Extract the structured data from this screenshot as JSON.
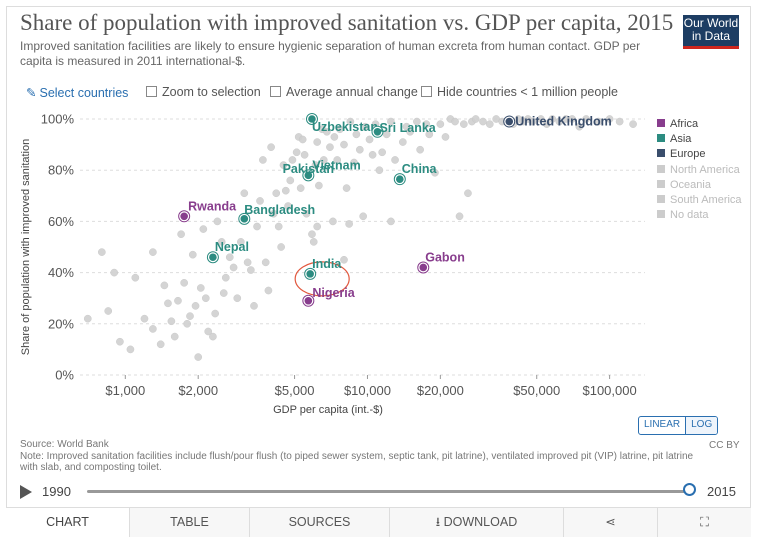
{
  "header": {
    "title": "Share of population with improved sanitation vs. GDP per capita, 2015",
    "subtitle": "Improved sanitation facilities are likely to ensure hygienic separation of human excreta from human contact. GDP per capita is measured in 2011 international-$.",
    "logo_line1": "Our World",
    "logo_line2": "in Data"
  },
  "controls": {
    "select_countries": "Select countries",
    "zoom": "Zoom to selection",
    "average_change": "Average annual change",
    "hide_small": "Hide countries < 1 million people"
  },
  "legend": [
    {
      "label": "Africa",
      "color": "#883d8d"
    },
    {
      "label": "Asia",
      "color": "#2c8c81"
    },
    {
      "label": "Europe",
      "color": "#3a4e6c"
    },
    {
      "label": "North America",
      "color": "#cccccc"
    },
    {
      "label": "Oceania",
      "color": "#cccccc"
    },
    {
      "label": "South America",
      "color": "#cccccc"
    },
    {
      "label": "No data",
      "color": "#cccccc"
    }
  ],
  "chart_data": {
    "type": "scatter",
    "xlabel": "GDP per capita (int.-$)",
    "ylabel": "Share of population with improved sanitation",
    "x_scale": "log",
    "xlim": [
      650,
      140000
    ],
    "ylim": [
      0,
      100
    ],
    "x_ticks": [
      1000,
      2000,
      5000,
      10000,
      20000,
      50000,
      100000
    ],
    "x_tick_labels": [
      "$1,000",
      "$2,000",
      "$5,000",
      "$10,000",
      "$20,000",
      "$50,000",
      "$100,000"
    ],
    "y_ticks": [
      0,
      20,
      40,
      60,
      80,
      100
    ],
    "y_tick_labels": [
      "0%",
      "20%",
      "40%",
      "60%",
      "80%",
      "100%"
    ],
    "grid": "horizontal",
    "legend_position": "right",
    "highlighted": [
      {
        "label": "United Kingdom",
        "region": "Europe",
        "x": 38500,
        "y": 99
      },
      {
        "label": "Uzbekistan",
        "region": "Asia",
        "x": 5900,
        "y": 100
      },
      {
        "label": "Sri Lanka",
        "region": "Asia",
        "x": 11000,
        "y": 95
      },
      {
        "label": "Vietnam",
        "region": "Asia",
        "x": 5700,
        "y": 78
      },
      {
        "label": "China",
        "region": "Asia",
        "x": 13600,
        "y": 76.5
      },
      {
        "label": "Pakistan",
        "region": "Asia",
        "x": 5000,
        "y": 80
      },
      {
        "label": "Bangladesh",
        "region": "Asia",
        "x": 3100,
        "y": 61
      },
      {
        "label": "Rwanda",
        "region": "Africa",
        "x": 1750,
        "y": 62
      },
      {
        "label": "Nepal",
        "region": "Asia",
        "x": 2300,
        "y": 46
      },
      {
        "label": "India",
        "region": "Asia",
        "x": 5800,
        "y": 39.5
      },
      {
        "label": "Gabon",
        "region": "Africa",
        "x": 17000,
        "y": 42
      },
      {
        "label": "Nigeria",
        "region": "Africa",
        "x": 5700,
        "y": 29
      }
    ],
    "others": [
      [
        700,
        22
      ],
      [
        800,
        48
      ],
      [
        850,
        25
      ],
      [
        900,
        40
      ],
      [
        950,
        13
      ],
      [
        1050,
        10
      ],
      [
        1100,
        38
      ],
      [
        1200,
        22
      ],
      [
        1300,
        48
      ],
      [
        1300,
        18
      ],
      [
        1400,
        12
      ],
      [
        1450,
        35
      ],
      [
        1500,
        28
      ],
      [
        1550,
        21
      ],
      [
        1600,
        15
      ],
      [
        1650,
        29
      ],
      [
        1700,
        55
      ],
      [
        1750,
        36
      ],
      [
        1800,
        20
      ],
      [
        1850,
        23
      ],
      [
        1900,
        47
      ],
      [
        1950,
        27
      ],
      [
        2000,
        7
      ],
      [
        2050,
        34
      ],
      [
        2100,
        57
      ],
      [
        2150,
        30
      ],
      [
        2200,
        17
      ],
      [
        2300,
        15
      ],
      [
        2350,
        24
      ],
      [
        2400,
        60
      ],
      [
        2500,
        52
      ],
      [
        2550,
        32
      ],
      [
        2600,
        38
      ],
      [
        2700,
        46
      ],
      [
        2800,
        42
      ],
      [
        2900,
        30
      ],
      [
        3000,
        52
      ],
      [
        3100,
        71
      ],
      [
        3200,
        44
      ],
      [
        3300,
        41
      ],
      [
        3400,
        27
      ],
      [
        3500,
        58
      ],
      [
        3600,
        68
      ],
      [
        3700,
        84
      ],
      [
        3800,
        44
      ],
      [
        3900,
        33
      ],
      [
        4000,
        89
      ],
      [
        4100,
        63
      ],
      [
        4200,
        71
      ],
      [
        4300,
        58
      ],
      [
        4400,
        50
      ],
      [
        4500,
        82
      ],
      [
        4600,
        72
      ],
      [
        4700,
        66
      ],
      [
        4800,
        76
      ],
      [
        4900,
        84
      ],
      [
        5100,
        87
      ],
      [
        5200,
        93
      ],
      [
        5300,
        73
      ],
      [
        5400,
        92
      ],
      [
        5500,
        86
      ],
      [
        5600,
        63
      ],
      [
        6000,
        52
      ],
      [
        6100,
        82
      ],
      [
        6200,
        91
      ],
      [
        6300,
        74
      ],
      [
        6500,
        96
      ],
      [
        6600,
        84
      ],
      [
        6800,
        95
      ],
      [
        7000,
        89
      ],
      [
        7300,
        93
      ],
      [
        7500,
        84
      ],
      [
        7700,
        96
      ],
      [
        8000,
        90
      ],
      [
        8200,
        73
      ],
      [
        8500,
        99
      ],
      [
        8800,
        83
      ],
      [
        9000,
        94
      ],
      [
        9300,
        88
      ],
      [
        9600,
        62
      ],
      [
        9800,
        97
      ],
      [
        10200,
        92
      ],
      [
        10500,
        86
      ],
      [
        10800,
        98
      ],
      [
        11500,
        87
      ],
      [
        12000,
        94
      ],
      [
        12500,
        99
      ],
      [
        13000,
        84
      ],
      [
        14000,
        91
      ],
      [
        14500,
        97
      ],
      [
        15000,
        95
      ],
      [
        16000,
        99
      ],
      [
        16500,
        88
      ],
      [
        17500,
        98
      ],
      [
        18000,
        94
      ],
      [
        19000,
        79
      ],
      [
        20000,
        98
      ],
      [
        21000,
        93
      ],
      [
        22000,
        100
      ],
      [
        23000,
        99
      ],
      [
        24000,
        62
      ],
      [
        25000,
        98
      ],
      [
        26000,
        71
      ],
      [
        27000,
        99
      ],
      [
        28000,
        100
      ],
      [
        30000,
        99
      ],
      [
        32000,
        98
      ],
      [
        34000,
        100
      ],
      [
        36000,
        99
      ],
      [
        40000,
        98
      ],
      [
        42000,
        100
      ],
      [
        44000,
        99
      ],
      [
        46000,
        100
      ],
      [
        48000,
        99
      ],
      [
        52000,
        100
      ],
      [
        55000,
        98
      ],
      [
        58000,
        100
      ],
      [
        62000,
        99
      ],
      [
        66000,
        100
      ],
      [
        70000,
        100
      ],
      [
        75000,
        97
      ],
      [
        80000,
        100
      ],
      [
        90000,
        99
      ],
      [
        100000,
        100
      ],
      [
        110000,
        99
      ],
      [
        125000,
        98
      ],
      [
        6200,
        58
      ],
      [
        5900,
        55
      ],
      [
        8400,
        59
      ],
      [
        7200,
        60
      ],
      [
        8000,
        45
      ],
      [
        11200,
        80
      ],
      [
        12500,
        60
      ]
    ]
  },
  "footer": {
    "source": "Source: World Bank",
    "note": "Note: Improved sanitation facilities include flush/pour flush (to piped sewer system, septic tank, pit latrine), ventilated improved pit (VIP) latrine, pit latrine with slab, and composting toilet.",
    "license": "CC BY",
    "scale_linear": "LINEAR",
    "scale_log": "LOG"
  },
  "timeline": {
    "start": "1990",
    "end": "2015",
    "position": 1.0
  },
  "tabs": [
    "CHART",
    "TABLE",
    "SOURCES",
    "DOWNLOAD",
    "",
    ""
  ]
}
